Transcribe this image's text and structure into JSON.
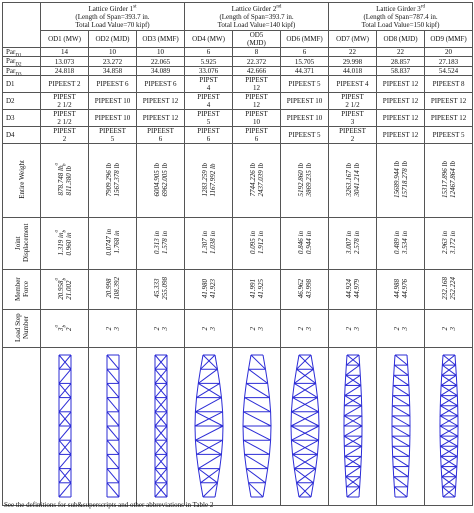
{
  "table": {
    "groups": [
      {
        "title": "Lattice Girder 1",
        "title_sup": "st",
        "span": "(Length of Span=393.7 in.",
        "load": "Total Load Value=70 kipf)"
      },
      {
        "title": "Lattice Girder 2",
        "title_sup": "nd",
        "span": "(Length of Span=393.7 in.",
        "load": "Total Load Value=140 kipf)"
      },
      {
        "title": "Lattice Girder 3",
        "title_sup": "rd",
        "span": "(Length of Span=787.4 in.",
        "load": "Total Load Value=150 kipf)"
      }
    ],
    "columns": [
      "OD1 (MW)",
      "OD2 (MJD)",
      "OD3 (MMF)",
      "OD4 (MW)",
      [
        "OD5",
        "(MJD)"
      ],
      "OD6 (MMF)",
      "OD7 (MW)",
      "OD8 (MJD)",
      "OD9 (MMF)"
    ],
    "par_rows": [
      {
        "label": "Par",
        "sub": "D1",
        "cells": [
          "14",
          "10",
          "10",
          "6",
          "8",
          "6",
          "22",
          "22",
          "20"
        ]
      },
      {
        "label": "Par",
        "sub": "D2",
        "cells": [
          "13.073",
          "23.272",
          "22.065",
          "5.925",
          "22.372",
          "15.705",
          "29.998",
          "28.857",
          "27.183"
        ]
      },
      {
        "label": "Par",
        "sub": "D3",
        "cells": [
          "24.818",
          "34.858",
          "34.089",
          "33.076",
          "42.666",
          "44.371",
          "44.018",
          "58.837",
          "54.524"
        ]
      }
    ],
    "d_rows": [
      {
        "label": "D1",
        "cells": [
          [
            "PIPEEST 2"
          ],
          [
            "PIPEEST 6"
          ],
          [
            "PIPEEST 6"
          ],
          [
            "PIPST",
            "4"
          ],
          [
            "PIPEST",
            "12"
          ],
          [
            "PIPEEST 5"
          ],
          [
            "PIPEEST 4"
          ],
          [
            "PIPEEST 12"
          ],
          [
            "PIPEEST 8"
          ]
        ]
      },
      {
        "label": "D2",
        "cells": [
          [
            "PIPEST",
            "2 1/2"
          ],
          [
            "PIPEEST 10"
          ],
          [
            "PIPEEST 12"
          ],
          [
            "PIPEST",
            "4"
          ],
          [
            "PIPEST",
            "12"
          ],
          [
            "PIPEEST 10"
          ],
          [
            "PIPEST",
            "2 1/2"
          ],
          [
            "PIPEEST 12"
          ],
          [
            "PIPEEST 12"
          ]
        ]
      },
      {
        "label": "D3",
        "cells": [
          [
            "PIPEST",
            "2 1/2"
          ],
          [
            "PIPEEST 10"
          ],
          [
            "PIPEEST 12"
          ],
          [
            "PIPEST",
            "5"
          ],
          [
            "PIPEST",
            "10"
          ],
          [
            "PIPEEST 10"
          ],
          [
            "PIPEST",
            "3"
          ],
          [
            "PIPEEST 12"
          ],
          [
            "PIPEEST 12"
          ]
        ]
      },
      {
        "label": "D4",
        "cells": [
          [
            "PIPEST",
            "2"
          ],
          [
            "PIPEEST",
            "5"
          ],
          [
            "PIPEEST",
            "6"
          ],
          [
            "PIPEST",
            "6"
          ],
          [
            "PIPEST",
            "6"
          ],
          [
            "PIPEEST 5"
          ],
          [
            "PIPEEST",
            "2"
          ],
          [
            "PIPEEST 12"
          ],
          [
            "PIPEEST 5"
          ]
        ]
      }
    ],
    "rot_rows": [
      {
        "label": "Entire Weight",
        "cells": [
          [
            {
              "text": "878.748 lb",
              "sup": "a"
            },
            {
              "text": "811.380 lb",
              "sup": "b"
            }
          ],
          [
            "7909.296 lb",
            "1567.378 lb"
          ],
          [
            "6004.905 lb",
            "6962.005 lb"
          ],
          [
            "1283.259 lb",
            "1167.992 lb"
          ],
          [
            "7744.226 lb",
            "2437.039 lb"
          ],
          [
            "5192.860 lb",
            "3869.235 lb"
          ],
          [
            "3263.167 lb",
            "3041.214 lb"
          ],
          [
            "15689.944 lb",
            "15718.278 lb"
          ],
          [
            "15317.896 lb",
            "12467.864 lb"
          ]
        ]
      },
      {
        "label": "Joint Displacement",
        "cells": [
          [
            {
              "text": "1.319 in",
              "sup": "a"
            },
            {
              "text": "0.960 in",
              "sup": "b"
            }
          ],
          [
            "0.0747 in",
            "1.768 in"
          ],
          [
            "0.313 in",
            "1.578 in"
          ],
          [
            "1.307 in",
            "1.038 in"
          ],
          [
            "0.095 in",
            "1.912 in"
          ],
          [
            "0.846 in",
            "0.944 in"
          ],
          [
            "3.007 in",
            "2.578 in"
          ],
          [
            "0.489 in",
            "3.534 in"
          ],
          [
            "2.963 in",
            "3.172 in"
          ]
        ]
      },
      {
        "label": "Member Force",
        "cells": [
          [
            {
              "text": "20.958",
              "sup": "a"
            },
            {
              "text": "21.002",
              "sup": "b"
            }
          ],
          [
            "20.998",
            "108.392"
          ],
          [
            "45.333",
            "255.098"
          ],
          [
            "41.980",
            "41.923"
          ],
          [
            "41.991",
            "41.925"
          ],
          [
            "46.962",
            "43.998"
          ],
          [
            "44.924",
            "44.979"
          ],
          [
            "44.988",
            "44.976"
          ],
          [
            "232.168",
            "252.224"
          ]
        ]
      },
      {
        "label": "Load Step Number",
        "cells": [
          [
            {
              "text": "3",
              "sup": "a"
            },
            {
              "text": "2",
              "sup": "b"
            }
          ],
          [
            "2",
            "3"
          ],
          [
            "2",
            "3"
          ],
          [
            "2",
            "3"
          ],
          [
            "2",
            "3"
          ],
          [
            "2",
            "3"
          ],
          [
            "2",
            "3"
          ],
          [
            "2",
            "3"
          ],
          [
            "2",
            "3"
          ]
        ]
      }
    ]
  },
  "footnote": "See the definitions for sub&superscripts and other abbreviations in Table 2"
}
